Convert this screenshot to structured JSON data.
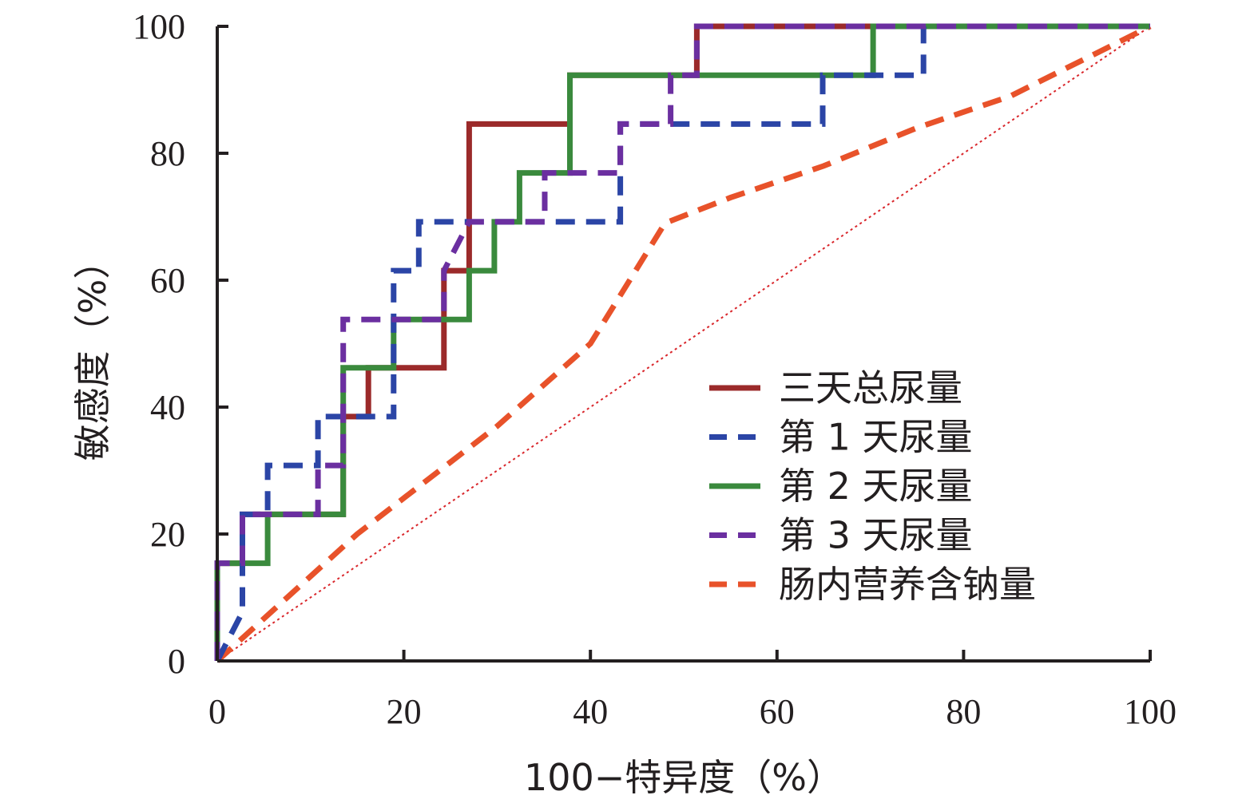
{
  "chart_data": {
    "type": "line",
    "title": "",
    "xlabel": "100−特异度（%）",
    "ylabel": "敏感度（%）",
    "xlim": [
      0,
      100
    ],
    "ylim": [
      0,
      100
    ],
    "x_ticks": [
      "0",
      "20",
      "40",
      "60",
      "80",
      "100"
    ],
    "y_ticks": [
      "0",
      "20",
      "40",
      "60",
      "80",
      "100"
    ],
    "grid": false,
    "legend_position": "bottom-right",
    "series": [
      {
        "name": "三天总尿量",
        "color": "#9b2a2a",
        "dash": "solid",
        "x": [
          0,
          0,
          2.7,
          2.7,
          13.5,
          13.5,
          16.2,
          16.2,
          24.3,
          24.3,
          27,
          27,
          37.8,
          37.8,
          51.4,
          51.4,
          100
        ],
        "y": [
          0,
          15.4,
          15.4,
          23.1,
          23.1,
          38.5,
          38.5,
          46.2,
          46.2,
          61.5,
          61.5,
          84.6,
          84.6,
          92.3,
          92.3,
          100,
          100
        ]
      },
      {
        "name": "第 1 天尿量",
        "color": "#2b45a6",
        "dash": "dashed",
        "x": [
          0,
          2.7,
          2.7,
          5.4,
          5.4,
          8.1,
          8.1,
          10.8,
          10.8,
          16.2,
          16.2,
          18.9,
          18.9,
          21.6,
          21.6,
          43.2,
          43.2,
          64.9,
          64.9,
          75.7,
          75.7,
          100
        ],
        "y": [
          0,
          7.7,
          23.1,
          23.1,
          30.8,
          30.8,
          30.8,
          30.8,
          38.5,
          38.5,
          38.5,
          38.5,
          61.5,
          61.5,
          69.2,
          69.2,
          84.6,
          84.6,
          92.3,
          92.3,
          100,
          100
        ]
      },
      {
        "name": "第 2 天尿量",
        "color": "#3a8a3d",
        "dash": "solid",
        "x": [
          0,
          0,
          5.4,
          5.4,
          13.5,
          13.5,
          18.9,
          18.9,
          27,
          27,
          29.7,
          29.7,
          32.4,
          32.4,
          37.8,
          37.8,
          70.3,
          70.3,
          100
        ],
        "y": [
          0,
          15.4,
          15.4,
          23.1,
          23.1,
          46.2,
          46.2,
          53.8,
          53.8,
          61.5,
          61.5,
          69.2,
          69.2,
          76.9,
          76.9,
          92.3,
          92.3,
          100,
          100
        ]
      },
      {
        "name": "第 3 天尿量",
        "color": "#6b2fa0",
        "dash": "dashed",
        "x": [
          0,
          0,
          2.7,
          2.7,
          10.8,
          10.8,
          13.5,
          13.5,
          24.3,
          24.3,
          27,
          27,
          35.1,
          35.1,
          43.2,
          43.2,
          48.6,
          48.6,
          51.4,
          51.4,
          100
        ],
        "y": [
          0,
          15.4,
          15.4,
          23.1,
          23.1,
          30.8,
          30.8,
          53.8,
          53.8,
          61.5,
          69.2,
          69.2,
          69.2,
          76.9,
          76.9,
          84.6,
          84.6,
          92.3,
          92.3,
          100,
          100
        ]
      },
      {
        "name": "肠内营养含钠量",
        "color": "#e8522a",
        "dash": "dashed",
        "x": [
          0,
          15,
          30,
          40,
          48,
          55,
          65,
          75,
          85,
          100
        ],
        "y": [
          0,
          20,
          37,
          50,
          69,
          73,
          78,
          84,
          89,
          100
        ]
      },
      {
        "name": "",
        "color": "#d9262b",
        "dash": "dotted",
        "x": [
          0,
          100
        ],
        "y": [
          0,
          100
        ]
      }
    ]
  }
}
